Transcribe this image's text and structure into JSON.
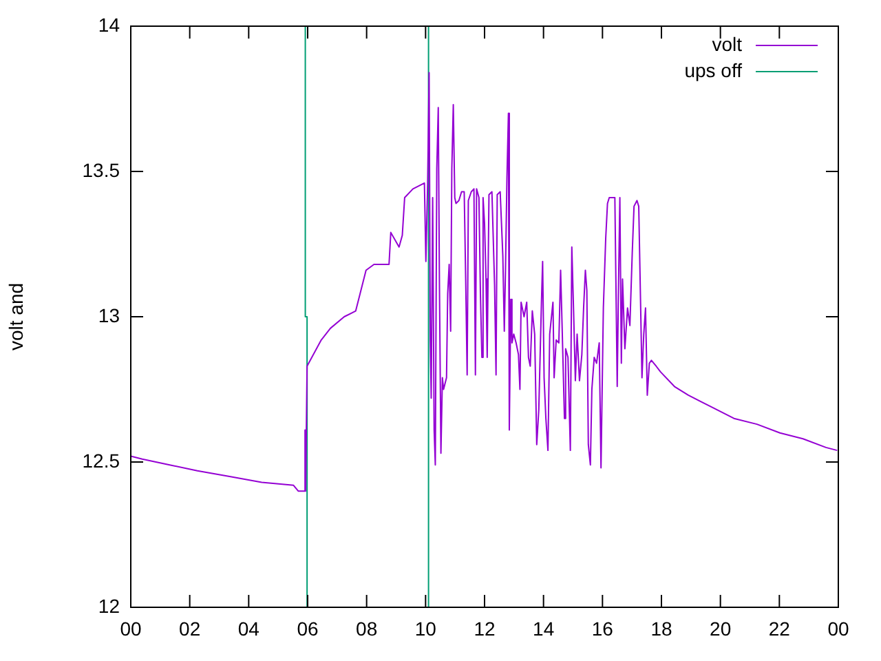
{
  "chart_data": {
    "type": "line",
    "ylabel": "volt and",
    "xlim": [
      0,
      24
    ],
    "xticks": [
      {
        "value": 0,
        "label": "00"
      },
      {
        "value": 2,
        "label": "02"
      },
      {
        "value": 4,
        "label": "04"
      },
      {
        "value": 6,
        "label": "06"
      },
      {
        "value": 8,
        "label": "08"
      },
      {
        "value": 10,
        "label": "10"
      },
      {
        "value": 12,
        "label": "12"
      },
      {
        "value": 14,
        "label": "14"
      },
      {
        "value": 16,
        "label": "16"
      },
      {
        "value": 18,
        "label": "18"
      },
      {
        "value": 20,
        "label": "20"
      },
      {
        "value": 22,
        "label": "22"
      },
      {
        "value": 24,
        "label": "00"
      }
    ],
    "ylim": [
      12,
      14
    ],
    "yticks": [
      12,
      12.5,
      13,
      13.5,
      14
    ],
    "grid": false,
    "legend": "top right",
    "marker": "none",
    "line_style": "solid",
    "series": [
      {
        "name": "volt",
        "color": "#9400d3",
        "x": [
          0.0,
          0.39,
          1.32,
          2.26,
          3.35,
          4.44,
          5.52,
          5.68,
          5.9,
          5.91,
          5.93,
          5.98,
          6.46,
          6.77,
          7.24,
          7.63,
          7.78,
          7.98,
          8.25,
          8.76,
          8.82,
          9.1,
          9.21,
          9.29,
          9.57,
          9.96,
          10.01,
          10.07,
          10.12,
          10.16,
          10.19,
          10.24,
          10.29,
          10.33,
          10.38,
          10.43,
          10.47,
          10.52,
          10.57,
          10.61,
          10.71,
          10.75,
          10.8,
          10.85,
          10.89,
          10.94,
          10.99,
          11.03,
          11.13,
          11.22,
          11.31,
          11.36,
          11.41,
          11.45,
          11.55,
          11.64,
          11.69,
          11.73,
          11.81,
          11.86,
          11.91,
          11.95,
          12.0,
          12.05,
          12.09,
          12.15,
          12.25,
          12.34,
          12.39,
          12.43,
          12.53,
          12.62,
          12.67,
          12.71,
          12.76,
          12.81,
          12.84,
          12.89,
          12.93,
          12.99,
          13.07,
          13.15,
          13.2,
          13.24,
          13.34,
          13.43,
          13.49,
          13.55,
          13.62,
          13.7,
          13.77,
          13.84,
          13.93,
          13.97,
          14.02,
          14.08,
          14.15,
          14.21,
          14.32,
          14.36,
          14.43,
          14.52,
          14.58,
          14.63,
          14.71,
          14.75,
          14.83,
          14.91,
          14.96,
          15.02,
          15.08,
          15.14,
          15.22,
          15.3,
          15.36,
          15.42,
          15.47,
          15.52,
          15.59,
          15.64,
          15.72,
          15.8,
          15.89,
          15.95,
          16.03,
          16.11,
          16.17,
          16.23,
          16.42,
          16.5,
          16.54,
          16.59,
          16.64,
          16.68,
          16.76,
          16.85,
          16.93,
          17.01,
          17.07,
          17.17,
          17.23,
          17.29,
          17.34,
          17.4,
          17.46,
          17.52,
          17.59,
          17.66,
          17.82,
          17.97,
          18.44,
          18.91,
          19.69,
          20.46,
          21.24,
          22.02,
          22.8,
          23.58,
          23.96
        ],
        "values": [
          12.52,
          12.51,
          12.49,
          12.47,
          12.45,
          12.43,
          12.42,
          12.4,
          12.4,
          12.61,
          12.4,
          12.83,
          12.92,
          12.96,
          13.0,
          13.02,
          13.08,
          13.16,
          13.18,
          13.18,
          13.29,
          13.24,
          13.28,
          13.41,
          13.44,
          13.46,
          13.19,
          13.46,
          13.84,
          12.92,
          12.72,
          13.41,
          12.61,
          12.49,
          13.51,
          13.72,
          13.11,
          12.53,
          12.79,
          12.75,
          12.79,
          13.08,
          13.18,
          12.95,
          13.51,
          13.73,
          13.41,
          13.39,
          13.4,
          13.43,
          13.43,
          13.13,
          12.8,
          13.4,
          13.43,
          13.44,
          12.8,
          13.44,
          13.41,
          13.08,
          12.86,
          13.41,
          13.32,
          13.13,
          12.86,
          13.42,
          13.43,
          13.11,
          12.8,
          13.42,
          13.43,
          13.21,
          12.95,
          13.16,
          13.48,
          13.7,
          12.61,
          13.06,
          12.91,
          12.94,
          12.91,
          12.87,
          12.75,
          13.05,
          13.0,
          13.05,
          12.86,
          12.83,
          13.02,
          12.94,
          12.56,
          12.68,
          13.05,
          13.19,
          12.79,
          12.65,
          12.54,
          12.94,
          13.05,
          12.79,
          12.92,
          12.91,
          13.16,
          12.97,
          12.65,
          12.89,
          12.86,
          12.54,
          13.24,
          13.02,
          12.78,
          12.94,
          12.78,
          12.87,
          13.03,
          13.16,
          13.09,
          12.56,
          12.49,
          12.75,
          12.86,
          12.84,
          12.91,
          12.48,
          13.03,
          13.27,
          13.39,
          13.41,
          13.41,
          12.76,
          13.08,
          13.41,
          12.84,
          13.13,
          12.89,
          13.03,
          12.97,
          13.22,
          13.38,
          13.4,
          13.38,
          13.06,
          12.79,
          12.94,
          13.03,
          12.73,
          12.84,
          12.85,
          12.83,
          12.81,
          12.76,
          12.73,
          12.69,
          12.65,
          12.63,
          12.6,
          12.58,
          12.55,
          12.54
        ]
      },
      {
        "name": "ups off",
        "color": "#009e73",
        "x": [
          5.92,
          5.92,
          5.98,
          5.98,
          8,
          10.1,
          10.1
        ],
        "values": [
          14,
          13,
          13,
          12,
          null,
          12,
          14
        ]
      }
    ]
  }
}
